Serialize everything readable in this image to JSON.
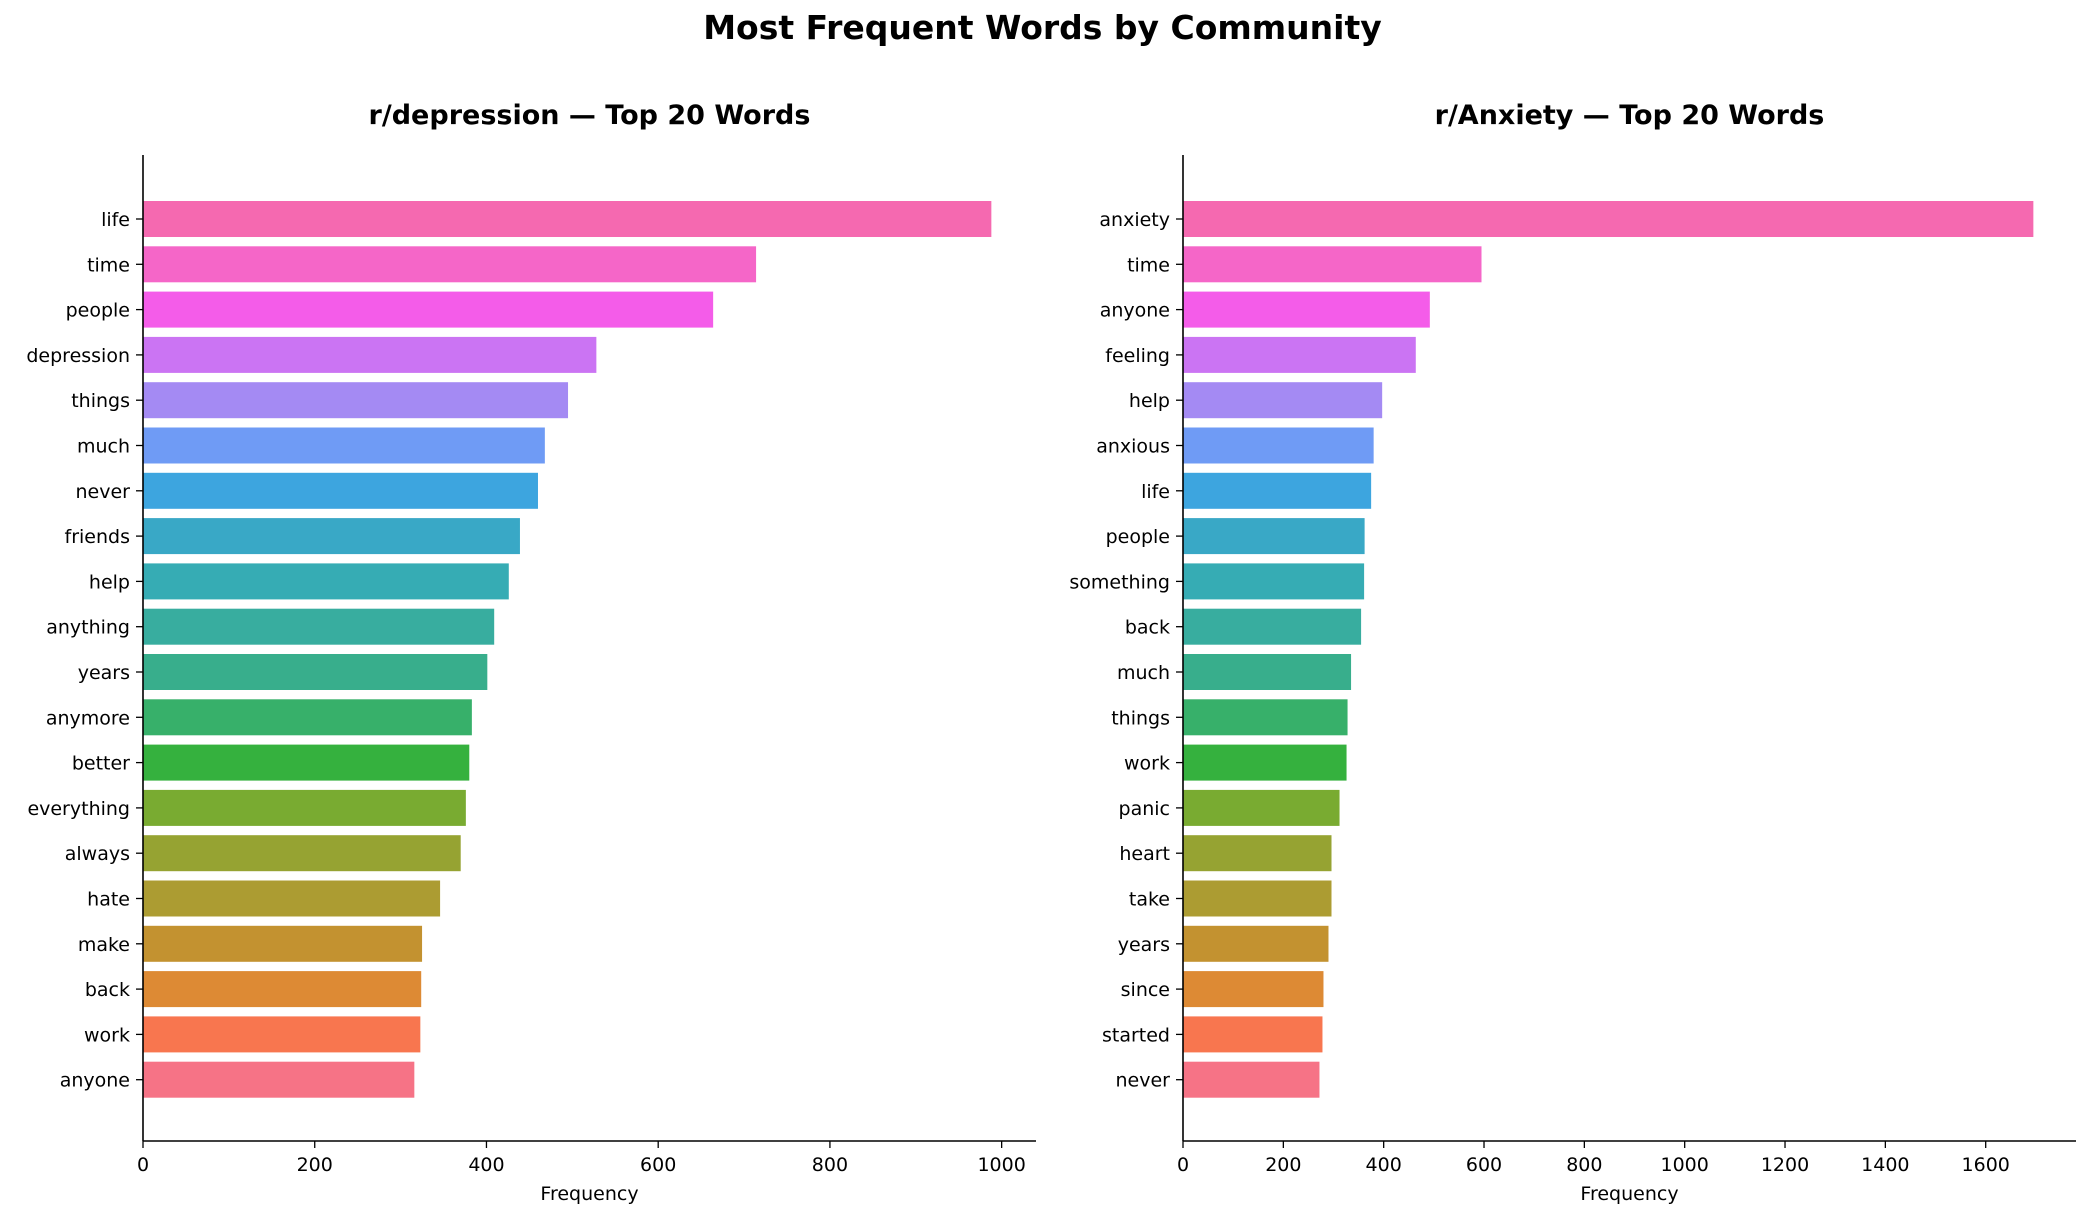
{
  "figure": {
    "title": "Most Frequent Words by Community"
  },
  "chart_data": [
    {
      "type": "bar",
      "orientation": "horizontal",
      "title": "r/depression — Top 20 Words",
      "xlabel": "Frequency",
      "ylabel": "",
      "xlim": [
        0,
        1040
      ],
      "xticks": [
        0,
        200,
        400,
        600,
        800,
        1000
      ],
      "grid": false,
      "categories": [
        "life",
        "time",
        "people",
        "depression",
        "things",
        "much",
        "never",
        "friends",
        "help",
        "anything",
        "years",
        "anymore",
        "better",
        "everything",
        "always",
        "hate",
        "make",
        "back",
        "work",
        "anyone"
      ],
      "values": [
        988,
        714,
        664,
        528,
        495,
        468,
        460,
        439,
        426,
        409,
        401,
        383,
        380,
        376,
        370,
        346,
        325,
        324,
        323,
        316
      ]
    },
    {
      "type": "bar",
      "orientation": "horizontal",
      "title": "r/Anxiety — Top 20 Words",
      "xlabel": "Frequency",
      "ylabel": "",
      "xlim": [
        0,
        1780
      ],
      "xticks": [
        0,
        200,
        400,
        600,
        800,
        1000,
        1200,
        1400,
        1600
      ],
      "grid": false,
      "categories": [
        "anxiety",
        "time",
        "anyone",
        "feeling",
        "help",
        "anxious",
        "life",
        "people",
        "something",
        "back",
        "much",
        "things",
        "work",
        "panic",
        "heart",
        "take",
        "years",
        "since",
        "started",
        "never"
      ],
      "values": [
        1695,
        595,
        492,
        464,
        397,
        380,
        375,
        362,
        361,
        355,
        335,
        328,
        326,
        312,
        296,
        296,
        290,
        280,
        278,
        272
      ]
    }
  ],
  "colors": {
    "bars": [
      "#f569b0",
      "#f566c8",
      "#f45ce9",
      "#cb74f3",
      "#a48af3",
      "#6f9bf5",
      "#3da5df",
      "#39a8c6",
      "#36acb4",
      "#38ad9f",
      "#38ae8c",
      "#37b06a",
      "#35b13e",
      "#79ab31",
      "#96a332",
      "#ac9c32",
      "#c39230",
      "#dd8a34",
      "#f8764f",
      "#f67386"
    ],
    "axis": "#000000",
    "text": "#000000"
  }
}
